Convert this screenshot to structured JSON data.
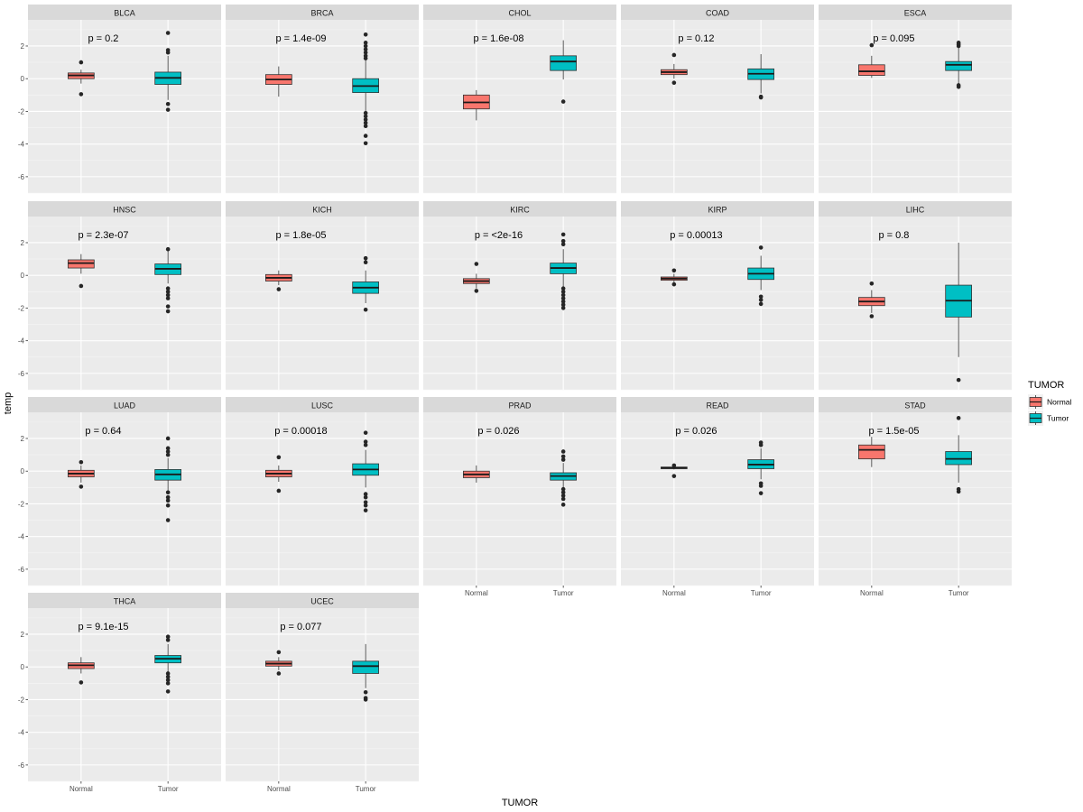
{
  "chart_data": {
    "type": "box",
    "facet_by": "cancer type",
    "x_title": "TUMOR",
    "y_title": "temp",
    "y_ticks": [
      -6,
      -4,
      -2,
      0,
      2
    ],
    "ylim": [
      -7,
      3.6
    ],
    "x_categories": [
      "Normal",
      "Tumor"
    ],
    "legend": {
      "title": "TUMOR",
      "entries": [
        {
          "label": "Normal",
          "color": "#F8766D"
        },
        {
          "label": "Tumor",
          "color": "#00BFC4"
        }
      ]
    },
    "panels": [
      {
        "name": "BLCA",
        "p": "p = 0.2",
        "normal": {
          "q1": 0.0,
          "med": 0.2,
          "q3": 0.35,
          "wlo": -0.3,
          "whi": 0.55,
          "out": [
            1.0,
            -0.95
          ]
        },
        "tumor": {
          "q1": -0.35,
          "med": 0.05,
          "q3": 0.4,
          "wlo": -1.3,
          "whi": 1.4,
          "out": [
            2.8,
            1.75,
            1.6,
            -1.55,
            -1.9
          ]
        }
      },
      {
        "name": "BRCA",
        "p": "p = 1.4e-09",
        "normal": {
          "q1": -0.35,
          "med": -0.05,
          "q3": 0.25,
          "wlo": -1.1,
          "whi": 0.75,
          "out": []
        },
        "tumor": {
          "q1": -0.85,
          "med": -0.45,
          "q3": 0.0,
          "wlo": -2.0,
          "whi": 1.2,
          "out": [
            2.7,
            2.2,
            2.0,
            1.8,
            1.6,
            1.4,
            1.25,
            -2.1,
            -2.3,
            -2.5,
            -2.7,
            -2.9,
            -3.5,
            -3.95
          ]
        }
      },
      {
        "name": "CHOL",
        "p": "p = 1.6e-08",
        "normal": {
          "q1": -1.85,
          "med": -1.45,
          "q3": -1.0,
          "wlo": -2.55,
          "whi": -0.7,
          "out": []
        },
        "tumor": {
          "q1": 0.5,
          "med": 1.05,
          "q3": 1.4,
          "wlo": -0.05,
          "whi": 2.35,
          "out": [
            -1.4
          ]
        }
      },
      {
        "name": "COAD",
        "p": "p = 0.12",
        "normal": {
          "q1": 0.25,
          "med": 0.4,
          "q3": 0.55,
          "wlo": 0.0,
          "whi": 0.9,
          "out": [
            1.45,
            -0.25
          ]
        },
        "tumor": {
          "q1": -0.05,
          "med": 0.3,
          "q3": 0.6,
          "wlo": -0.9,
          "whi": 1.5,
          "out": [
            -1.1,
            -1.15
          ]
        }
      },
      {
        "name": "ESCA",
        "p": "p = 0.095",
        "normal": {
          "q1": 0.2,
          "med": 0.45,
          "q3": 0.85,
          "wlo": 0.05,
          "whi": 1.4,
          "out": [
            2.05
          ]
        },
        "tumor": {
          "q1": 0.5,
          "med": 0.85,
          "q3": 1.05,
          "wlo": -0.3,
          "whi": 1.9,
          "out": [
            2.2,
            2.1,
            2.0,
            -0.4,
            -0.5
          ]
        }
      },
      {
        "name": "HNSC",
        "p": "p = 2.3e-07",
        "normal": {
          "q1": 0.45,
          "med": 0.75,
          "q3": 0.95,
          "wlo": 0.1,
          "whi": 1.3,
          "out": [
            -0.65
          ]
        },
        "tumor": {
          "q1": 0.05,
          "med": 0.4,
          "q3": 0.7,
          "wlo": -0.5,
          "whi": 1.5,
          "out": [
            1.6,
            -0.8,
            -1.0,
            -1.2,
            -1.4,
            -1.9,
            -2.2
          ]
        }
      },
      {
        "name": "KICH",
        "p": "p = 1.8e-05",
        "normal": {
          "q1": -0.35,
          "med": -0.15,
          "q3": 0.05,
          "wlo": -0.6,
          "whi": 0.3,
          "out": [
            -0.85
          ]
        },
        "tumor": {
          "q1": -1.1,
          "med": -0.75,
          "q3": -0.4,
          "wlo": -1.7,
          "whi": 0.3,
          "out": [
            1.05,
            0.8,
            -2.1
          ]
        }
      },
      {
        "name": "KIRC",
        "p": "p = <2e-16",
        "normal": {
          "q1": -0.5,
          "med": -0.35,
          "q3": -0.2,
          "wlo": -0.8,
          "whi": 0.1,
          "out": [
            0.7,
            -0.95
          ]
        },
        "tumor": {
          "q1": 0.1,
          "med": 0.45,
          "q3": 0.75,
          "wlo": -0.7,
          "whi": 1.6,
          "out": [
            2.5,
            2.1,
            1.9,
            -0.8,
            -1.0,
            -1.2,
            -1.4,
            -1.6,
            -1.8,
            -2.0
          ]
        }
      },
      {
        "name": "KIRP",
        "p": "p = 0.00013",
        "normal": {
          "q1": -0.3,
          "med": -0.2,
          "q3": -0.1,
          "wlo": -0.5,
          "whi": 0.1,
          "out": [
            0.3,
            -0.55
          ]
        },
        "tumor": {
          "q1": -0.25,
          "med": 0.1,
          "q3": 0.45,
          "wlo": -0.9,
          "whi": 1.2,
          "out": [
            1.7,
            -1.3,
            -1.5,
            -1.75
          ]
        }
      },
      {
        "name": "LIHC",
        "p": "p = 0.8",
        "normal": {
          "q1": -1.85,
          "med": -1.6,
          "q3": -1.35,
          "wlo": -2.3,
          "whi": -0.9,
          "out": [
            -0.5,
            -2.5
          ]
        },
        "tumor": {
          "q1": -2.55,
          "med": -1.55,
          "q3": -0.6,
          "wlo": -5.0,
          "whi": 2.0,
          "out": [
            -6.4
          ]
        }
      },
      {
        "name": "LUAD",
        "p": "p = 0.64",
        "normal": {
          "q1": -0.35,
          "med": -0.15,
          "q3": 0.05,
          "wlo": -0.7,
          "whi": 0.35,
          "out": [
            0.55,
            -0.95
          ]
        },
        "tumor": {
          "q1": -0.55,
          "med": -0.2,
          "q3": 0.1,
          "wlo": -1.2,
          "whi": 0.8,
          "out": [
            2.0,
            1.4,
            1.2,
            1.0,
            -1.3,
            -1.6,
            -1.8,
            -2.1,
            -3.0
          ]
        }
      },
      {
        "name": "LUSC",
        "p": "p = 0.00018",
        "normal": {
          "q1": -0.35,
          "med": -0.15,
          "q3": 0.05,
          "wlo": -0.65,
          "whi": 0.35,
          "out": [
            0.85,
            -1.2
          ]
        },
        "tumor": {
          "q1": -0.25,
          "med": 0.1,
          "q3": 0.45,
          "wlo": -1.0,
          "whi": 1.3,
          "out": [
            2.35,
            1.8,
            1.6,
            -1.4,
            -1.6,
            -1.9,
            -2.1,
            -2.4
          ]
        }
      },
      {
        "name": "PRAD",
        "p": "p = 0.026",
        "normal": {
          "q1": -0.4,
          "med": -0.2,
          "q3": 0.0,
          "wlo": -0.7,
          "whi": 0.35,
          "out": []
        },
        "tumor": {
          "q1": -0.55,
          "med": -0.3,
          "q3": -0.1,
          "wlo": -1.0,
          "whi": 0.5,
          "out": [
            1.2,
            0.9,
            0.7,
            -1.1,
            -1.3,
            -1.5,
            -1.7,
            -2.05
          ]
        }
      },
      {
        "name": "READ",
        "p": "p = 0.026",
        "normal": {
          "q1": 0.15,
          "med": 0.2,
          "q3": 0.25,
          "wlo": 0.1,
          "whi": 0.3,
          "out": [
            0.35,
            -0.3
          ]
        },
        "tumor": {
          "q1": 0.15,
          "med": 0.4,
          "q3": 0.7,
          "wlo": -0.5,
          "whi": 1.4,
          "out": [
            1.75,
            1.6,
            -0.75,
            -0.9,
            -1.35
          ]
        }
      },
      {
        "name": "STAD",
        "p": "p = 1.5e-05",
        "normal": {
          "q1": 0.75,
          "med": 1.3,
          "q3": 1.6,
          "wlo": 0.25,
          "whi": 2.1,
          "out": []
        },
        "tumor": {
          "q1": 0.4,
          "med": 0.75,
          "q3": 1.2,
          "wlo": -0.7,
          "whi": 2.2,
          "out": [
            3.25,
            -1.1,
            -1.25
          ]
        }
      },
      {
        "name": "THCA",
        "p": "p = 9.1e-15",
        "normal": {
          "q1": -0.1,
          "med": 0.1,
          "q3": 0.25,
          "wlo": -0.4,
          "whi": 0.6,
          "out": [
            -0.95
          ]
        },
        "tumor": {
          "q1": 0.25,
          "med": 0.5,
          "q3": 0.7,
          "wlo": -0.3,
          "whi": 1.4,
          "out": [
            1.85,
            1.65,
            -0.4,
            -0.6,
            -0.8,
            -1.0,
            -1.5
          ]
        }
      },
      {
        "name": "UCEC",
        "p": "p = 0.077",
        "normal": {
          "q1": 0.05,
          "med": 0.2,
          "q3": 0.35,
          "wlo": -0.2,
          "whi": 0.6,
          "out": [
            0.9,
            -0.4
          ]
        },
        "tumor": {
          "q1": -0.4,
          "med": 0.05,
          "q3": 0.35,
          "wlo": -1.3,
          "whi": 1.4,
          "out": [
            -1.55,
            -1.9,
            -2.0
          ]
        }
      }
    ]
  }
}
